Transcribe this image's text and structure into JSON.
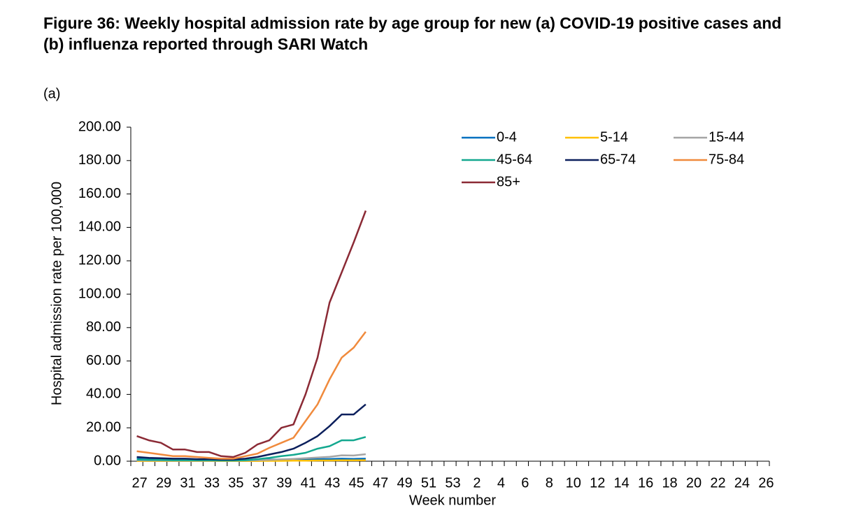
{
  "chart_data": {
    "type": "line",
    "title": "Figure 36: Weekly hospital admission rate by age group for new (a) COVID-19 positive cases and (b) influenza reported through SARI Watch",
    "panel_label": "(a)",
    "x_label": "Week number",
    "y_label": "Hospital admission rate per 100,000",
    "categories": [
      "27",
      null,
      "29",
      null,
      "31",
      null,
      "33",
      null,
      "35",
      null,
      "37",
      null,
      "39",
      null,
      "41",
      null,
      "43",
      null,
      "45",
      null,
      "47",
      null,
      "49",
      null,
      "51",
      null,
      "53",
      null,
      "2",
      null,
      "4",
      null,
      "6",
      null,
      "8",
      null,
      "10",
      null,
      "12",
      null,
      "14",
      null,
      "16",
      null,
      "18",
      null,
      "20",
      null,
      "22",
      null,
      "24",
      null,
      "26"
    ],
    "ylim": [
      0,
      200
    ],
    "yticks": [
      {
        "value": 0,
        "label": "0.00"
      },
      {
        "value": 20,
        "label": "20.00"
      },
      {
        "value": 40,
        "label": "40.00"
      },
      {
        "value": 60,
        "label": "60.00"
      },
      {
        "value": 80,
        "label": "80.00"
      },
      {
        "value": 100,
        "label": "100.00"
      },
      {
        "value": 120,
        "label": "120.00"
      },
      {
        "value": 140,
        "label": "140.00"
      },
      {
        "value": 160,
        "label": "160.00"
      },
      {
        "value": 180,
        "label": "180.00"
      },
      {
        "value": 200,
        "label": "200.00"
      }
    ],
    "grid": false,
    "legend": "upper right",
    "series": [
      {
        "name": "0-4",
        "color": "#0070c0",
        "values": [
          2,
          1.8,
          1.5,
          1.2,
          1,
          1,
          0.8,
          0.6,
          0.6,
          0.6,
          0.8,
          1,
          1,
          1.2,
          1.2,
          1.2,
          1.3,
          1.5,
          1.4,
          1.5,
          null,
          null,
          null,
          null,
          null,
          null,
          null,
          null,
          null,
          null,
          null,
          null,
          null,
          null,
          null,
          null,
          null,
          null,
          null,
          null,
          null,
          null,
          null,
          null,
          null,
          null,
          null,
          null,
          null,
          null,
          null,
          null,
          null
        ]
      },
      {
        "name": "5-14",
        "color": "#ffc000",
        "values": [
          0.1,
          0.1,
          0.1,
          0.1,
          0.1,
          0.1,
          0.1,
          0.1,
          0.1,
          0.1,
          0.1,
          0.2,
          0.2,
          0.3,
          0.3,
          0.4,
          0.4,
          0.5,
          0.5,
          0.6,
          null,
          null,
          null,
          null,
          null,
          null,
          null,
          null,
          null,
          null,
          null,
          null,
          null,
          null,
          null,
          null,
          null,
          null,
          null,
          null,
          null,
          null,
          null,
          null,
          null,
          null,
          null,
          null,
          null,
          null,
          null,
          null,
          null
        ]
      },
      {
        "name": "15-44",
        "color": "#a5a5a5",
        "values": [
          0.5,
          0.4,
          0.4,
          0.3,
          0.3,
          0.3,
          0.3,
          0.3,
          0.3,
          0.4,
          0.6,
          0.8,
          1.1,
          1.4,
          1.8,
          2.2,
          2.6,
          3.5,
          3.4,
          4.2,
          null,
          null,
          null,
          null,
          null,
          null,
          null,
          null,
          null,
          null,
          null,
          null,
          null,
          null,
          null,
          null,
          null,
          null,
          null,
          null,
          null,
          null,
          null,
          null,
          null,
          null,
          null,
          null,
          null,
          null,
          null,
          null,
          null
        ]
      },
      {
        "name": "45-64",
        "color": "#13a88f",
        "values": [
          1,
          0.8,
          0.7,
          0.6,
          0.6,
          0.5,
          0.5,
          0.4,
          0.4,
          0.6,
          1.2,
          2,
          3,
          3.8,
          5,
          7.5,
          9,
          12.5,
          12.5,
          14.5,
          null,
          null,
          null,
          null,
          null,
          null,
          null,
          null,
          null,
          null,
          null,
          null,
          null,
          null,
          null,
          null,
          null,
          null,
          null,
          null,
          null,
          null,
          null,
          null,
          null,
          null,
          null,
          null,
          null,
          null,
          null,
          null,
          null
        ]
      },
      {
        "name": "65-74",
        "color": "#0b1f5c",
        "values": [
          2.5,
          2,
          1.8,
          1.5,
          1.5,
          1.2,
          1.2,
          1,
          1,
          1.5,
          2.5,
          4,
          5.5,
          7.5,
          11,
          15,
          21,
          28,
          28,
          34,
          null,
          null,
          null,
          null,
          null,
          null,
          null,
          null,
          null,
          null,
          null,
          null,
          null,
          null,
          null,
          null,
          null,
          null,
          null,
          null,
          null,
          null,
          null,
          null,
          null,
          null,
          null,
          null,
          null,
          null,
          null,
          null,
          null
        ]
      },
      {
        "name": "75-84",
        "color": "#f08a3c",
        "values": [
          6,
          5,
          4,
          3,
          3,
          2.5,
          2,
          1.5,
          1.5,
          3,
          4.5,
          8,
          11,
          14,
          24,
          34,
          49,
          62,
          68,
          77.5,
          null,
          null,
          null,
          null,
          null,
          null,
          null,
          null,
          null,
          null,
          null,
          null,
          null,
          null,
          null,
          null,
          null,
          null,
          null,
          null,
          null,
          null,
          null,
          null,
          null,
          null,
          null,
          null,
          null,
          null,
          null,
          null,
          null
        ]
      },
      {
        "name": "85+",
        "color": "#8b2a35",
        "values": [
          15,
          12.5,
          11,
          7,
          7,
          5.5,
          5.5,
          3,
          2.5,
          5,
          10,
          12.5,
          20,
          22,
          40,
          62,
          95,
          113,
          131,
          150,
          null,
          null,
          null,
          null,
          null,
          null,
          null,
          null,
          null,
          null,
          null,
          null,
          null,
          null,
          null,
          null,
          null,
          null,
          null,
          null,
          null,
          null,
          null,
          null,
          null,
          null,
          null,
          null,
          null,
          null,
          null,
          null,
          null
        ]
      }
    ]
  }
}
